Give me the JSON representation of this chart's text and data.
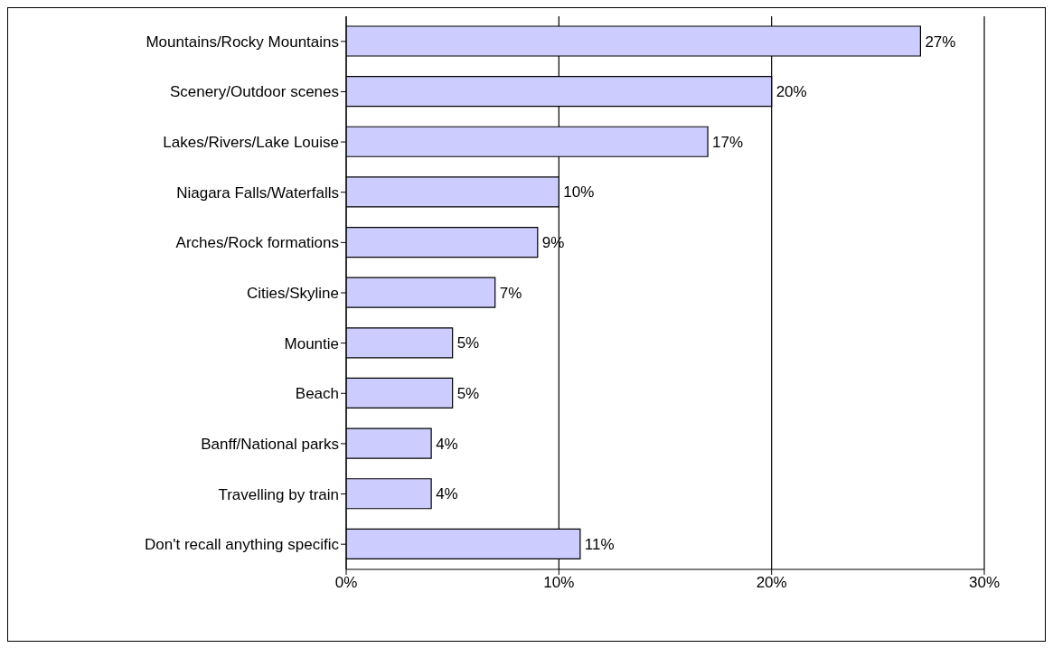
{
  "chart_data": {
    "type": "bar",
    "orientation": "horizontal",
    "categories": [
      "Mountains/Rocky Mountains",
      "Scenery/Outdoor scenes",
      "Lakes/Rivers/Lake Louise",
      "Niagara Falls/Waterfalls",
      "Arches/Rock formations",
      "Cities/Skyline",
      "Mountie",
      "Beach",
      "Banff/National parks",
      "Travelling by train",
      "Don't recall anything specific"
    ],
    "values": [
      27,
      20,
      17,
      10,
      9,
      7,
      5,
      5,
      4,
      4,
      11
    ],
    "value_labels": [
      "27%",
      "20%",
      "17%",
      "10%",
      "9%",
      "7%",
      "5%",
      "5%",
      "4%",
      "4%",
      "11%"
    ],
    "color": "#ccccff",
    "xlim": [
      0,
      30
    ],
    "xticks": [
      {
        "value": 0,
        "label": "0%"
      },
      {
        "value": 10,
        "label": "10%"
      },
      {
        "value": 20,
        "label": "20%"
      },
      {
        "value": 30,
        "label": "30%"
      }
    ],
    "grid": "x"
  }
}
